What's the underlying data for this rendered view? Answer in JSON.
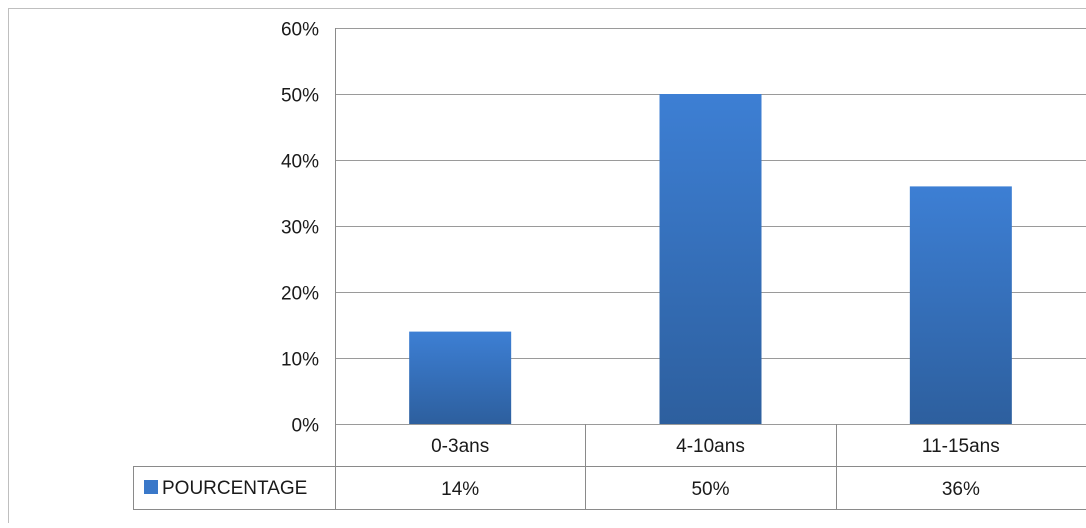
{
  "chart_data": {
    "type": "bar",
    "title": "",
    "xlabel": "",
    "ylabel": "",
    "categories": [
      "0-3ans",
      "4-10ans",
      "11-15ans"
    ],
    "series": [
      {
        "name": "POURCENTAGE",
        "values": [
          0.14,
          0.5,
          0.36
        ],
        "value_labels": [
          "14%",
          "50%",
          "36%"
        ],
        "color": "#3a78c9"
      }
    ],
    "ylim": [
      0,
      0.6
    ],
    "y_ticks": [
      0,
      0.1,
      0.2,
      0.3,
      0.4,
      0.5,
      0.6
    ],
    "y_tick_labels": [
      "0%",
      "10%",
      "20%",
      "30%",
      "40%",
      "50%",
      "60%"
    ],
    "grid": true,
    "legend": "data-table-left",
    "data_table": true
  }
}
